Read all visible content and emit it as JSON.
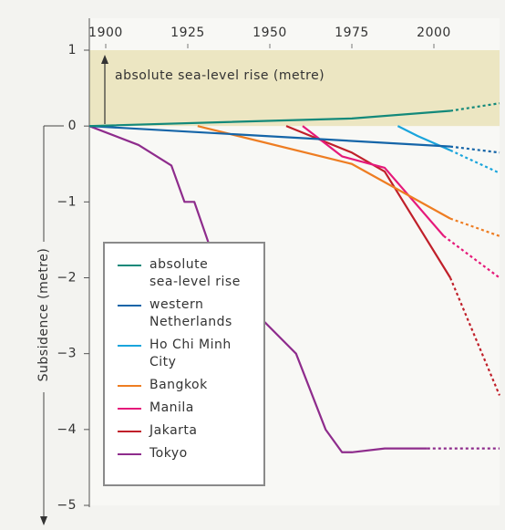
{
  "chart_data": {
    "type": "line",
    "ylabel": "Subsidence (metre)",
    "annotation": "absolute sea-level rise (metre)",
    "xlim": [
      1895,
      2020
    ],
    "xticks": [
      1900,
      1925,
      1950,
      1975,
      2000
    ],
    "ylim": [
      -5,
      1
    ],
    "yticks": [
      1,
      0,
      {
        "value": -1,
        "label": "−1"
      },
      {
        "value": -2,
        "label": "−2"
      },
      {
        "value": -3,
        "label": "−3"
      },
      {
        "value": -4,
        "label": "−4"
      },
      {
        "value": -5,
        "label": "−5"
      }
    ],
    "series": [
      {
        "name": "absolute sea-level rise",
        "color": "#13897a",
        "x": [
          1895,
          1975,
          2005
        ],
        "values": [
          0,
          0.1,
          0.2
        ],
        "projection": {
          "x": [
            2020
          ],
          "values": [
            0.3
          ]
        }
      },
      {
        "name": "western Netherlands",
        "color": "#1565a8",
        "x": [
          1895,
          2005
        ],
        "values": [
          0,
          -0.27
        ],
        "projection": {
          "x": [
            2020
          ],
          "values": [
            -0.35
          ]
        }
      },
      {
        "name": "Ho Chi Minh City",
        "color": "#1aa5dc",
        "x": [
          1989,
          1995,
          2005
        ],
        "values": [
          0,
          -0.13,
          -0.32
        ],
        "projection": {
          "x": [
            2020
          ],
          "values": [
            -0.62
          ]
        }
      },
      {
        "name": "Bangkok",
        "color": "#ee7d22",
        "x": [
          1928,
          1975,
          2005
        ],
        "values": [
          0,
          -0.5,
          -1.22
        ],
        "projection": {
          "x": [
            2020
          ],
          "values": [
            -1.45
          ]
        }
      },
      {
        "name": "Manila",
        "color": "#e5197a",
        "x": [
          1960,
          1972,
          1985,
          2003
        ],
        "values": [
          0,
          -0.4,
          -0.55,
          -1.45
        ],
        "projection": {
          "x": [
            2020
          ],
          "values": [
            -2.0
          ]
        }
      },
      {
        "name": "Jakarta",
        "color": "#c0202a",
        "x": [
          1955,
          1975,
          1985,
          2005
        ],
        "values": [
          0,
          -0.35,
          -0.6,
          -2.0
        ],
        "projection": {
          "x": [
            2020
          ],
          "values": [
            -3.55
          ]
        }
      },
      {
        "name": "Tokyo",
        "color": "#8e2c8c",
        "x": [
          1895,
          1910,
          1920,
          1924,
          1927,
          1935,
          1958,
          1967,
          1972,
          1975,
          1985,
          1998
        ],
        "values": [
          0,
          -0.25,
          -0.52,
          -1.0,
          -1.0,
          -2.0,
          -3.0,
          -4.0,
          -4.3,
          -4.3,
          -4.25,
          -4.25
        ],
        "projection": {
          "x": [
            2020
          ],
          "values": [
            -4.25
          ]
        }
      }
    ]
  }
}
